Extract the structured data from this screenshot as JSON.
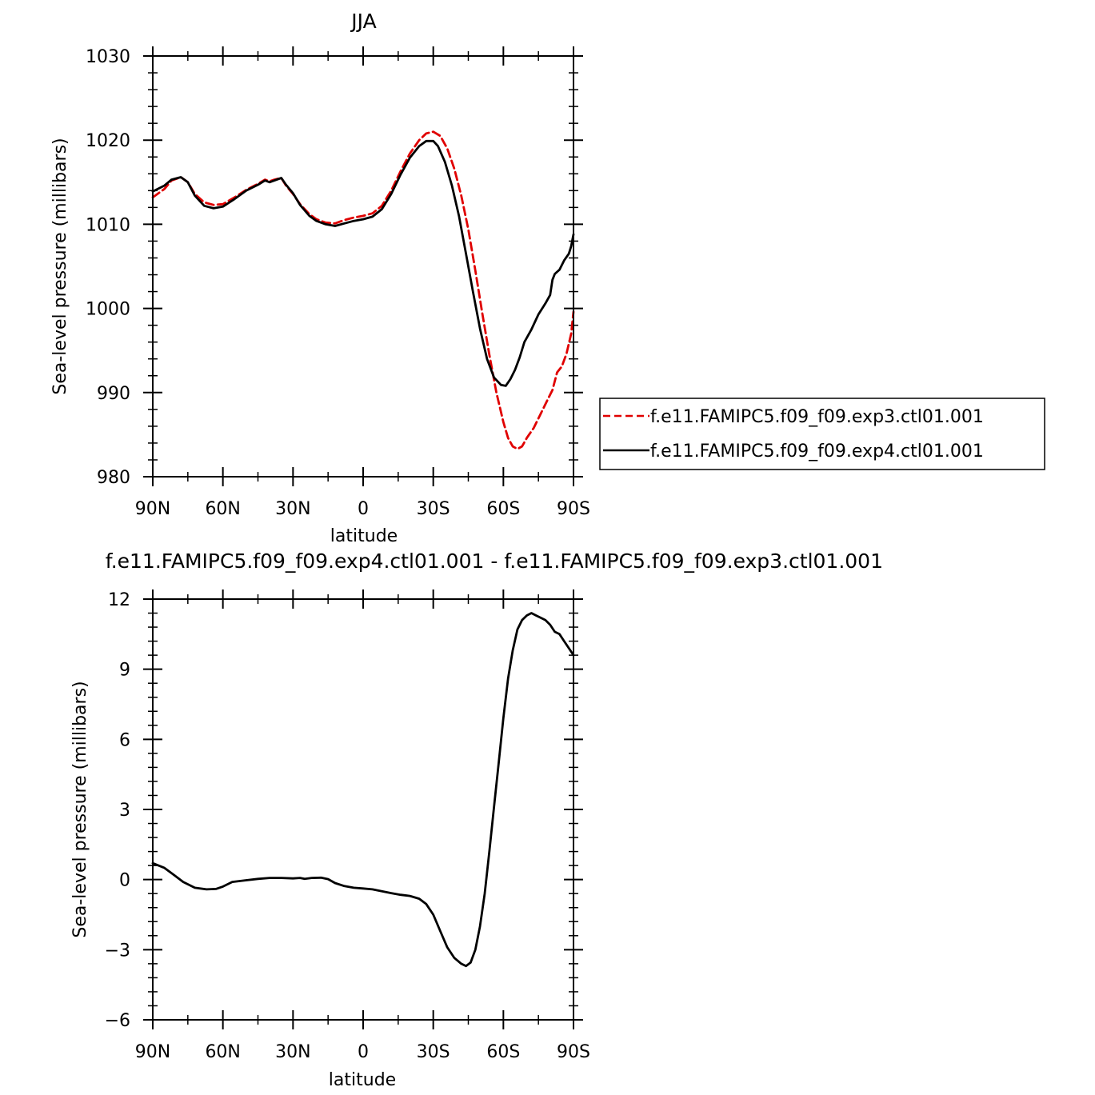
{
  "chart_data": [
    {
      "type": "line",
      "title": "JJA",
      "xlabel": "latitude",
      "ylabel": "Sea-level pressure (millibars)",
      "xlim": [
        -90,
        90
      ],
      "ylim": [
        980,
        1030
      ],
      "x_tick_values": [
        -90,
        -60,
        -30,
        0,
        30,
        60,
        90
      ],
      "x_tick_labels": [
        "90N",
        "60N",
        "30N",
        "0",
        "30S",
        "60S",
        "90S"
      ],
      "y_tick_values": [
        980,
        990,
        1000,
        1010,
        1020,
        1030
      ],
      "y_tick_labels": [
        "980",
        "990",
        "1000",
        "1010",
        "1020",
        "1030"
      ],
      "legend_position": "right",
      "series": [
        {
          "name": "f.e11.FAMIPC5.f09_f09.exp3.ctl01.001",
          "color": "#e00000",
          "dash": "dashed",
          "points": [
            [
              -90,
              1013.2
            ],
            [
              -85,
              1014.2
            ],
            [
              -82,
              1015.2
            ],
            [
              -78,
              1015.6
            ],
            [
              -75,
              1015.0
            ],
            [
              -72,
              1013.6
            ],
            [
              -68,
              1012.6
            ],
            [
              -64,
              1012.3
            ],
            [
              -60,
              1012.4
            ],
            [
              -55,
              1013.2
            ],
            [
              -50,
              1014.1
            ],
            [
              -45,
              1014.8
            ],
            [
              -42,
              1015.3
            ],
            [
              -40,
              1015.1
            ],
            [
              -38,
              1015.3
            ],
            [
              -35,
              1015.5
            ],
            [
              -33,
              1014.6
            ],
            [
              -30,
              1013.6
            ],
            [
              -27,
              1012.4
            ],
            [
              -23,
              1011.2
            ],
            [
              -20,
              1010.6
            ],
            [
              -16,
              1010.2
            ],
            [
              -12,
              1010.1
            ],
            [
              -8,
              1010.5
            ],
            [
              -4,
              1010.8
            ],
            [
              0,
              1011.0
            ],
            [
              4,
              1011.3
            ],
            [
              8,
              1012.2
            ],
            [
              12,
              1014.0
            ],
            [
              16,
              1016.3
            ],
            [
              20,
              1018.4
            ],
            [
              24,
              1020.0
            ],
            [
              27,
              1020.8
            ],
            [
              30,
              1021.0
            ],
            [
              33,
              1020.5
            ],
            [
              36,
              1019.0
            ],
            [
              39,
              1016.6
            ],
            [
              42,
              1013.4
            ],
            [
              45,
              1009.4
            ],
            [
              48,
              1004.5
            ],
            [
              51,
              999.4
            ],
            [
              54,
              994.5
            ],
            [
              57,
              990.0
            ],
            [
              60,
              986.5
            ],
            [
              62,
              984.6
            ],
            [
              64,
              983.6
            ],
            [
              66,
              983.3
            ],
            [
              68,
              983.6
            ],
            [
              70,
              984.6
            ],
            [
              73,
              985.8
            ],
            [
              76,
              987.5
            ],
            [
              79,
              989.2
            ],
            [
              81,
              990.3
            ],
            [
              83,
              992.4
            ],
            [
              85,
              993.1
            ],
            [
              87,
              994.6
            ],
            [
              89,
              997.0
            ],
            [
              90,
              999.6
            ]
          ]
        },
        {
          "name": "f.e11.FAMIPC5.f09_f09.exp4.ctl01.001",
          "color": "#000000",
          "dash": "solid",
          "points": [
            [
              -90,
              1013.9
            ],
            [
              -85,
              1014.6
            ],
            [
              -82,
              1015.3
            ],
            [
              -78,
              1015.6
            ],
            [
              -75,
              1015.0
            ],
            [
              -72,
              1013.4
            ],
            [
              -68,
              1012.2
            ],
            [
              -64,
              1011.9
            ],
            [
              -60,
              1012.1
            ],
            [
              -55,
              1013.0
            ],
            [
              -50,
              1014.0
            ],
            [
              -45,
              1014.7
            ],
            [
              -42,
              1015.2
            ],
            [
              -40,
              1015.0
            ],
            [
              -38,
              1015.2
            ],
            [
              -35,
              1015.5
            ],
            [
              -33,
              1014.7
            ],
            [
              -30,
              1013.7
            ],
            [
              -27,
              1012.3
            ],
            [
              -23,
              1011.0
            ],
            [
              -20,
              1010.4
            ],
            [
              -16,
              1010.0
            ],
            [
              -12,
              1009.8
            ],
            [
              -8,
              1010.1
            ],
            [
              -4,
              1010.4
            ],
            [
              0,
              1010.6
            ],
            [
              4,
              1010.9
            ],
            [
              8,
              1011.8
            ],
            [
              12,
              1013.6
            ],
            [
              16,
              1015.9
            ],
            [
              20,
              1017.9
            ],
            [
              24,
              1019.3
            ],
            [
              27,
              1019.9
            ],
            [
              30,
              1019.9
            ],
            [
              32,
              1019.3
            ],
            [
              35,
              1017.4
            ],
            [
              38,
              1014.6
            ],
            [
              41,
              1011.0
            ],
            [
              44,
              1006.5
            ],
            [
              47,
              1002.0
            ],
            [
              50,
              997.6
            ],
            [
              53,
              994.0
            ],
            [
              56,
              991.8
            ],
            [
              59,
              990.9
            ],
            [
              61,
              990.8
            ],
            [
              63,
              991.6
            ],
            [
              65,
              992.7
            ],
            [
              67,
              994.2
            ],
            [
              69,
              996.0
            ],
            [
              72,
              997.5
            ],
            [
              75,
              999.3
            ],
            [
              78,
              1000.6
            ],
            [
              80,
              1001.6
            ],
            [
              81,
              1003.4
            ],
            [
              82,
              1004.1
            ],
            [
              84,
              1004.6
            ],
            [
              86,
              1005.7
            ],
            [
              88,
              1006.5
            ],
            [
              89,
              1007.4
            ],
            [
              90,
              1008.8
            ]
          ]
        }
      ]
    },
    {
      "type": "line",
      "title": "f.e11.FAMIPC5.f09_f09.exp4.ctl01.001 - f.e11.FAMIPC5.f09_f09.exp3.ctl01.001",
      "xlabel": "latitude",
      "ylabel": "Sea-level pressure (millibars)",
      "xlim": [
        -90,
        90
      ],
      "ylim": [
        -6,
        12
      ],
      "x_tick_values": [
        -90,
        -60,
        -30,
        0,
        30,
        60,
        90
      ],
      "x_tick_labels": [
        "90N",
        "60N",
        "30N",
        "0",
        "30S",
        "60S",
        "90S"
      ],
      "y_tick_values": [
        -6,
        -3,
        0,
        3,
        6,
        9,
        12
      ],
      "y_tick_labels": [
        "−6",
        "−3",
        "0",
        "3",
        "6",
        "9",
        "12"
      ],
      "series": [
        {
          "color": "#000000",
          "dash": "solid",
          "points": [
            [
              -90,
              0.7
            ],
            [
              -85,
              0.5
            ],
            [
              -81,
              0.2
            ],
            [
              -77,
              -0.1
            ],
            [
              -72,
              -0.35
            ],
            [
              -67,
              -0.42
            ],
            [
              -63,
              -0.4
            ],
            [
              -60,
              -0.3
            ],
            [
              -56,
              -0.1
            ],
            [
              -50,
              -0.03
            ],
            [
              -45,
              0.03
            ],
            [
              -40,
              0.07
            ],
            [
              -35,
              0.07
            ],
            [
              -30,
              0.05
            ],
            [
              -27,
              0.07
            ],
            [
              -25,
              0.03
            ],
            [
              -22,
              0.07
            ],
            [
              -18,
              0.08
            ],
            [
              -15,
              0.02
            ],
            [
              -12,
              -0.15
            ],
            [
              -8,
              -0.28
            ],
            [
              -4,
              -0.35
            ],
            [
              0,
              -0.38
            ],
            [
              4,
              -0.42
            ],
            [
              8,
              -0.5
            ],
            [
              12,
              -0.58
            ],
            [
              16,
              -0.65
            ],
            [
              20,
              -0.7
            ],
            [
              24,
              -0.82
            ],
            [
              27,
              -1.05
            ],
            [
              30,
              -1.5
            ],
            [
              33,
              -2.2
            ],
            [
              36,
              -2.9
            ],
            [
              39,
              -3.35
            ],
            [
              42,
              -3.6
            ],
            [
              44,
              -3.7
            ],
            [
              46,
              -3.55
            ],
            [
              48,
              -3.0
            ],
            [
              50,
              -2.0
            ],
            [
              52,
              -0.6
            ],
            [
              54,
              1.2
            ],
            [
              56,
              3.1
            ],
            [
              58,
              5.0
            ],
            [
              60,
              6.9
            ],
            [
              62,
              8.6
            ],
            [
              64,
              9.8
            ],
            [
              66,
              10.7
            ],
            [
              68,
              11.1
            ],
            [
              70,
              11.3
            ],
            [
              72,
              11.4
            ],
            [
              74,
              11.3
            ],
            [
              76,
              11.2
            ],
            [
              78,
              11.1
            ],
            [
              80,
              10.9
            ],
            [
              82,
              10.6
            ],
            [
              84,
              10.5
            ],
            [
              86,
              10.2
            ],
            [
              88,
              9.9
            ],
            [
              90,
              9.6
            ]
          ]
        }
      ]
    }
  ]
}
